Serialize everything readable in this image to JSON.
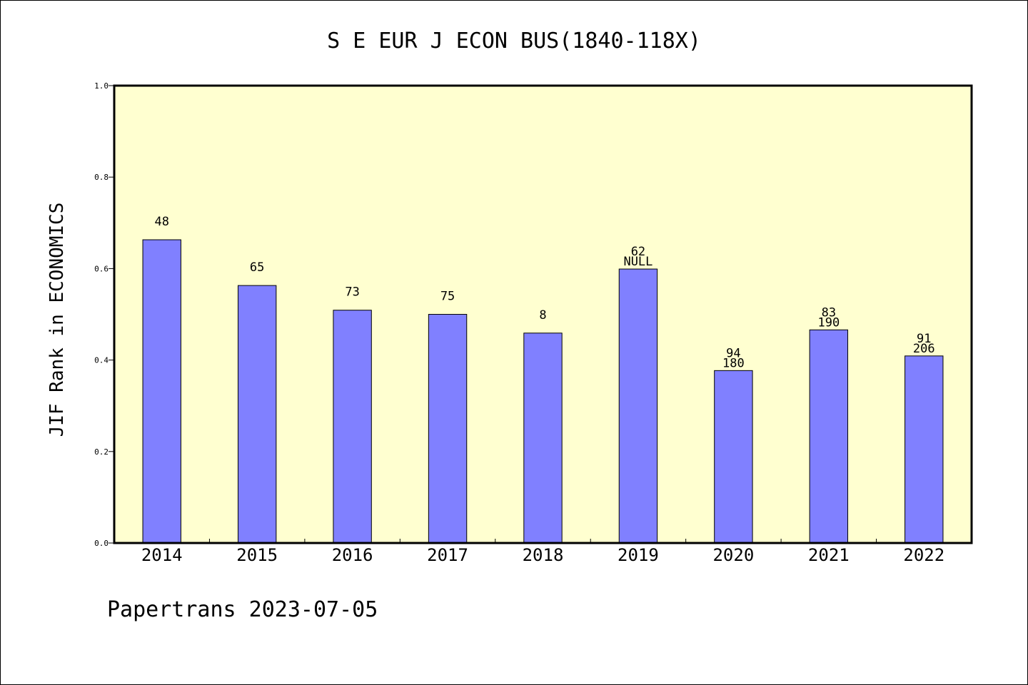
{
  "chart_data": {
    "type": "bar",
    "title": "S E EUR J ECON BUS(1840-118X)",
    "ylabel": "JIF Rank in ECONOMICS",
    "xlabel": "",
    "categories": [
      "2014",
      "2015",
      "2016",
      "2017",
      "2018",
      "2019",
      "2020",
      "2021",
      "2022"
    ],
    "values": [
      0.663,
      0.563,
      0.509,
      0.5,
      0.459,
      0.599,
      0.377,
      0.466,
      0.409
    ],
    "bar_labels": [
      [
        "48"
      ],
      [
        "65"
      ],
      [
        "73"
      ],
      [
        "75"
      ],
      [
        "8"
      ],
      [
        "62",
        "NULL"
      ],
      [
        "94",
        "180"
      ],
      [
        "83",
        "190"
      ],
      [
        "91",
        "206"
      ]
    ],
    "ylim": [
      0,
      1.0
    ],
    "yticks": [
      "0.0",
      "0.2",
      "0.4",
      "0.6",
      "0.8",
      "1.0"
    ],
    "grid": false,
    "colors": {
      "plot_background": "#FFFFD0",
      "bar_fill": "#8080FF",
      "bar_edge": "#000000"
    }
  },
  "footer": "Papertrans 2023-07-05"
}
